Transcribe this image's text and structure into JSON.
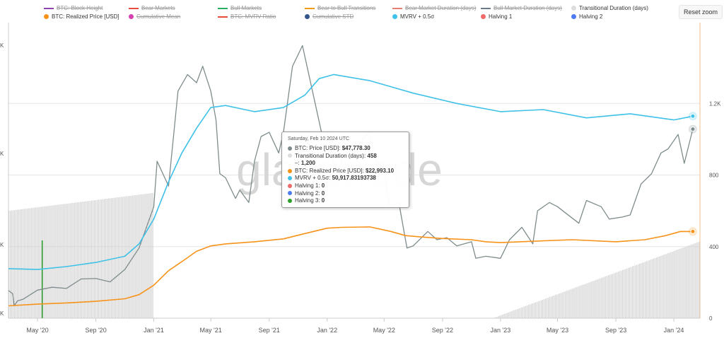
{
  "legend": {
    "items": [
      {
        "label": "BTC: Block Height",
        "color": "#8e44ad",
        "hidden": true,
        "sym": "line"
      },
      {
        "label": "Bear Markets",
        "color": "#e74c3c",
        "hidden": true,
        "sym": "line"
      },
      {
        "label": "Bull Markets",
        "color": "#27ae60",
        "hidden": true,
        "sym": "line"
      },
      {
        "label": "Bear to Bull Transitions",
        "color": "#f39c12",
        "hidden": true,
        "sym": "line"
      },
      {
        "label": "Bear Market Duration (days)",
        "color": "#e67e73",
        "hidden": true,
        "sym": "line"
      },
      {
        "label": "Bull Market Duration (days)",
        "color": "#6c7a89",
        "hidden": true,
        "sym": "line"
      },
      {
        "label": "Transitional Duration (days)",
        "color": "#dddddd",
        "hidden": false,
        "sym": "dot"
      },
      {
        "label": "BTC: Realized Price [USD]",
        "color": "#f7931a",
        "hidden": false,
        "sym": "dot"
      },
      {
        "label": "Cumulative Mean",
        "color": "#d63fb0",
        "hidden": true,
        "sym": "dot"
      },
      {
        "label": "BTC: MVRV Ratio",
        "color": "#e74c3c",
        "hidden": true,
        "sym": "line"
      },
      {
        "label": "Cumulative STD",
        "color": "#34568b",
        "hidden": true,
        "sym": "dot"
      },
      {
        "label": "MVRV + 0.5σ",
        "color": "#3fc1e8",
        "hidden": false,
        "sym": "dot"
      },
      {
        "label": "Halving 1",
        "color": "#f06a6a",
        "hidden": false,
        "sym": "dot"
      },
      {
        "label": "Halving 2",
        "color": "#4d7cf0",
        "hidden": false,
        "sym": "dot"
      }
    ]
  },
  "reset_zoom_label": "Reset zoom",
  "watermark": "glassnode",
  "tooltip": {
    "date": "Saturday, Feb 10 2024 UTC",
    "rows": [
      {
        "label": "BTC: Price [USD]:",
        "value": "$47,778.30",
        "color": "#7f8c8d"
      },
      {
        "label": "Transitional Duration (days):",
        "value": "458",
        "color": "#dddddd"
      },
      {
        "label": "–:",
        "value": "1,200",
        "color": ""
      },
      {
        "label": "BTC: Realized Price [USD]:",
        "value": "$22,993.10",
        "color": "#f7931a"
      },
      {
        "label": "MVRV + 0.5σ:",
        "value": "50,917.83193738",
        "color": "#3fc1e8"
      },
      {
        "label": "Halving 1:",
        "value": "0",
        "color": "#f06a6a"
      },
      {
        "label": "Halving 2:",
        "value": "0",
        "color": "#4d7cf0"
      },
      {
        "label": "Halving 3:",
        "value": "0",
        "color": "#2ca02c"
      }
    ]
  },
  "chart_data": {
    "type": "line",
    "x_ticks": [
      "May '20",
      "Sep '20",
      "Jan '21",
      "May '21",
      "Sep '21",
      "Jan '22",
      "May '22",
      "Sep '22",
      "Jan '23",
      "May '23",
      "Sep '23",
      "Jan '24"
    ],
    "x_range": [
      "2020-03-01",
      "2024-02-25"
    ],
    "left_axis": {
      "tick_labels": [
        "K",
        "K",
        "K",
        "K"
      ],
      "note": "labels cropped at left edge"
    },
    "right_axis": {
      "ticks": [
        0,
        400,
        800,
        1200
      ],
      "range": [
        0,
        1600
      ]
    },
    "series": [
      {
        "name": "BTC: Price [USD]",
        "color": "#7f8c8d",
        "x": [
          "2020-03-01",
          "2020-03-10",
          "2020-03-13",
          "2020-03-20",
          "2020-04-01",
          "2020-05-01",
          "2020-06-01",
          "2020-07-01",
          "2020-08-01",
          "2020-09-01",
          "2020-10-01",
          "2020-11-01",
          "2020-12-01",
          "2021-01-01",
          "2021-01-08",
          "2021-02-01",
          "2021-02-21",
          "2021-03-13",
          "2021-04-01",
          "2021-04-14",
          "2021-05-01",
          "2021-05-12",
          "2021-05-20",
          "2021-06-01",
          "2021-06-22",
          "2021-07-01",
          "2021-07-20",
          "2021-08-01",
          "2021-08-15",
          "2021-09-01",
          "2021-09-21",
          "2021-10-01",
          "2021-10-20",
          "2021-11-10",
          "2021-12-01",
          "2021-12-20",
          "2022-01-01",
          "2022-01-22",
          "2022-02-10",
          "2022-03-01",
          "2022-03-29",
          "2022-04-15",
          "2022-05-01",
          "2022-05-12",
          "2022-06-01",
          "2022-06-18",
          "2022-07-01",
          "2022-08-01",
          "2022-08-20",
          "2022-09-10",
          "2022-10-01",
          "2022-11-01",
          "2022-11-10",
          "2022-12-01",
          "2023-01-01",
          "2023-01-20",
          "2023-02-15",
          "2023-03-10",
          "2023-03-20",
          "2023-04-14",
          "2023-05-01",
          "2023-06-15",
          "2023-07-01",
          "2023-08-01",
          "2023-08-18",
          "2023-09-15",
          "2023-10-01",
          "2023-10-24",
          "2023-11-15",
          "2023-12-05",
          "2023-12-20",
          "2024-01-10",
          "2024-01-23",
          "2024-02-10"
        ],
        "y": [
          8700,
          7900,
          5000,
          6200,
          6600,
          8800,
          9500,
          9200,
          11500,
          11600,
          10800,
          13800,
          19000,
          29000,
          40000,
          34000,
          57000,
          61000,
          59000,
          63000,
          57000,
          50000,
          37000,
          36000,
          31000,
          33000,
          30000,
          40000,
          46000,
          47000,
          42000,
          47000,
          63000,
          68000,
          57000,
          47000,
          47000,
          36000,
          44000,
          43000,
          47000,
          40000,
          38000,
          29000,
          30000,
          19000,
          19500,
          23000,
          21000,
          21500,
          19500,
          20500,
          16500,
          17000,
          16500,
          21000,
          24000,
          20000,
          28000,
          30000,
          29000,
          25000,
          30500,
          29000,
          26000,
          26500,
          27000,
          34500,
          37000,
          42000,
          43000,
          46500,
          39500,
          47778
        ]
      },
      {
        "name": "BTC: Realized Price [USD]",
        "color": "#f7931a",
        "x": [
          "2020-03-01",
          "2020-05-01",
          "2020-07-01",
          "2020-09-01",
          "2020-11-01",
          "2020-12-01",
          "2021-01-01",
          "2021-02-01",
          "2021-03-01",
          "2021-04-01",
          "2021-05-01",
          "2021-06-01",
          "2021-08-01",
          "2021-10-01",
          "2021-11-15",
          "2022-01-01",
          "2022-02-01",
          "2022-04-01",
          "2022-05-15",
          "2022-06-15",
          "2022-07-15",
          "2022-09-01",
          "2022-11-01",
          "2022-12-01",
          "2023-01-01",
          "2023-03-01",
          "2023-06-01",
          "2023-09-01",
          "2023-11-01",
          "2023-12-15",
          "2024-01-15",
          "2024-02-10"
        ],
        "y": [
          5000,
          5400,
          5700,
          6100,
          6700,
          7700,
          10000,
          13500,
          15700,
          18200,
          19500,
          20000,
          20500,
          21200,
          22500,
          23800,
          24000,
          24100,
          23000,
          22000,
          21700,
          21300,
          21000,
          20500,
          20300,
          20600,
          21000,
          20500,
          21000,
          22000,
          23000,
          22993
        ]
      },
      {
        "name": "MVRV + 0.5σ",
        "color": "#3fc1e8",
        "x": [
          "2020-03-01",
          "2020-05-01",
          "2020-07-01",
          "2020-09-01",
          "2020-11-01",
          "2020-12-01",
          "2021-01-01",
          "2021-02-01",
          "2021-03-01",
          "2021-04-01",
          "2021-05-01",
          "2021-06-01",
          "2021-08-01",
          "2021-10-01",
          "2021-11-15",
          "2021-12-15",
          "2022-01-15",
          "2022-04-01",
          "2022-07-01",
          "2022-10-01",
          "2023-01-01",
          "2023-04-01",
          "2023-07-01",
          "2023-10-01",
          "2024-01-01",
          "2024-02-10"
        ],
        "y": [
          14000,
          13800,
          14500,
          15500,
          17000,
          20000,
          26000,
          35000,
          42000,
          48000,
          53000,
          53500,
          52000,
          53000,
          56000,
          60000,
          61000,
          59500,
          56500,
          54000,
          52000,
          52500,
          50500,
          51500,
          50000,
          50918
        ]
      }
    ],
    "bar_series": {
      "name": "Transitional Duration (days)",
      "color": "#cfcfcf",
      "segments": [
        {
          "start": "2020-03-01",
          "end": "2020-12-31",
          "start_value": 600,
          "end_value": 700
        },
        {
          "start": "2022-12-15",
          "end": "2024-02-25",
          "start_value": 0,
          "end_value": 430
        }
      ]
    },
    "halving_marker": {
      "date": "2020-05-11",
      "color": "#2ca02c",
      "name": "Halving 3"
    },
    "grid": true
  }
}
